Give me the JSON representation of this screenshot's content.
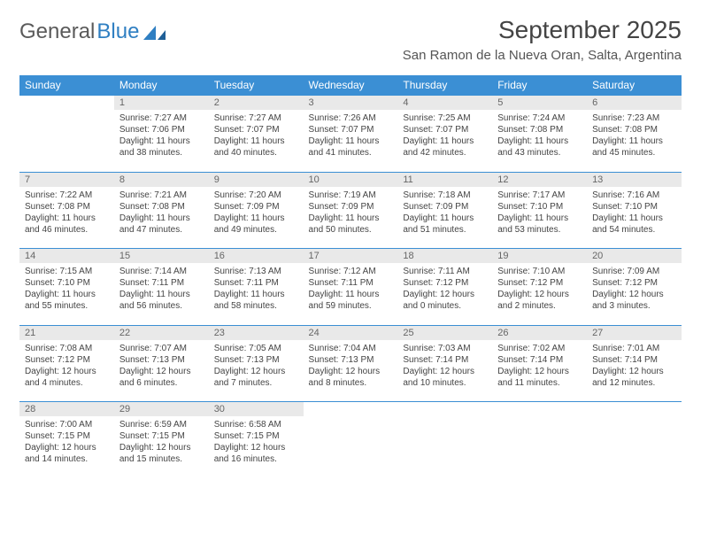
{
  "logo": {
    "text1": "General",
    "text2": "Blue"
  },
  "title": "September 2025",
  "location": "San Ramon de la Nueva Oran, Salta, Argentina",
  "colors": {
    "header_bg": "#3b8fd4",
    "header_text": "#ffffff",
    "daynum_bg": "#e9e9e9",
    "daynum_text": "#666666",
    "body_text": "#444444",
    "rule": "#3b8fd4",
    "logo_gray": "#5a5a5a",
    "logo_blue": "#2f7fc2"
  },
  "weekdays": [
    "Sunday",
    "Monday",
    "Tuesday",
    "Wednesday",
    "Thursday",
    "Friday",
    "Saturday"
  ],
  "weeks": [
    [
      null,
      {
        "n": "1",
        "sr": "Sunrise: 7:27 AM",
        "ss": "Sunset: 7:06 PM",
        "dl": "Daylight: 11 hours and 38 minutes."
      },
      {
        "n": "2",
        "sr": "Sunrise: 7:27 AM",
        "ss": "Sunset: 7:07 PM",
        "dl": "Daylight: 11 hours and 40 minutes."
      },
      {
        "n": "3",
        "sr": "Sunrise: 7:26 AM",
        "ss": "Sunset: 7:07 PM",
        "dl": "Daylight: 11 hours and 41 minutes."
      },
      {
        "n": "4",
        "sr": "Sunrise: 7:25 AM",
        "ss": "Sunset: 7:07 PM",
        "dl": "Daylight: 11 hours and 42 minutes."
      },
      {
        "n": "5",
        "sr": "Sunrise: 7:24 AM",
        "ss": "Sunset: 7:08 PM",
        "dl": "Daylight: 11 hours and 43 minutes."
      },
      {
        "n": "6",
        "sr": "Sunrise: 7:23 AM",
        "ss": "Sunset: 7:08 PM",
        "dl": "Daylight: 11 hours and 45 minutes."
      }
    ],
    [
      {
        "n": "7",
        "sr": "Sunrise: 7:22 AM",
        "ss": "Sunset: 7:08 PM",
        "dl": "Daylight: 11 hours and 46 minutes."
      },
      {
        "n": "8",
        "sr": "Sunrise: 7:21 AM",
        "ss": "Sunset: 7:08 PM",
        "dl": "Daylight: 11 hours and 47 minutes."
      },
      {
        "n": "9",
        "sr": "Sunrise: 7:20 AM",
        "ss": "Sunset: 7:09 PM",
        "dl": "Daylight: 11 hours and 49 minutes."
      },
      {
        "n": "10",
        "sr": "Sunrise: 7:19 AM",
        "ss": "Sunset: 7:09 PM",
        "dl": "Daylight: 11 hours and 50 minutes."
      },
      {
        "n": "11",
        "sr": "Sunrise: 7:18 AM",
        "ss": "Sunset: 7:09 PM",
        "dl": "Daylight: 11 hours and 51 minutes."
      },
      {
        "n": "12",
        "sr": "Sunrise: 7:17 AM",
        "ss": "Sunset: 7:10 PM",
        "dl": "Daylight: 11 hours and 53 minutes."
      },
      {
        "n": "13",
        "sr": "Sunrise: 7:16 AM",
        "ss": "Sunset: 7:10 PM",
        "dl": "Daylight: 11 hours and 54 minutes."
      }
    ],
    [
      {
        "n": "14",
        "sr": "Sunrise: 7:15 AM",
        "ss": "Sunset: 7:10 PM",
        "dl": "Daylight: 11 hours and 55 minutes."
      },
      {
        "n": "15",
        "sr": "Sunrise: 7:14 AM",
        "ss": "Sunset: 7:11 PM",
        "dl": "Daylight: 11 hours and 56 minutes."
      },
      {
        "n": "16",
        "sr": "Sunrise: 7:13 AM",
        "ss": "Sunset: 7:11 PM",
        "dl": "Daylight: 11 hours and 58 minutes."
      },
      {
        "n": "17",
        "sr": "Sunrise: 7:12 AM",
        "ss": "Sunset: 7:11 PM",
        "dl": "Daylight: 11 hours and 59 minutes."
      },
      {
        "n": "18",
        "sr": "Sunrise: 7:11 AM",
        "ss": "Sunset: 7:12 PM",
        "dl": "Daylight: 12 hours and 0 minutes."
      },
      {
        "n": "19",
        "sr": "Sunrise: 7:10 AM",
        "ss": "Sunset: 7:12 PM",
        "dl": "Daylight: 12 hours and 2 minutes."
      },
      {
        "n": "20",
        "sr": "Sunrise: 7:09 AM",
        "ss": "Sunset: 7:12 PM",
        "dl": "Daylight: 12 hours and 3 minutes."
      }
    ],
    [
      {
        "n": "21",
        "sr": "Sunrise: 7:08 AM",
        "ss": "Sunset: 7:12 PM",
        "dl": "Daylight: 12 hours and 4 minutes."
      },
      {
        "n": "22",
        "sr": "Sunrise: 7:07 AM",
        "ss": "Sunset: 7:13 PM",
        "dl": "Daylight: 12 hours and 6 minutes."
      },
      {
        "n": "23",
        "sr": "Sunrise: 7:05 AM",
        "ss": "Sunset: 7:13 PM",
        "dl": "Daylight: 12 hours and 7 minutes."
      },
      {
        "n": "24",
        "sr": "Sunrise: 7:04 AM",
        "ss": "Sunset: 7:13 PM",
        "dl": "Daylight: 12 hours and 8 minutes."
      },
      {
        "n": "25",
        "sr": "Sunrise: 7:03 AM",
        "ss": "Sunset: 7:14 PM",
        "dl": "Daylight: 12 hours and 10 minutes."
      },
      {
        "n": "26",
        "sr": "Sunrise: 7:02 AM",
        "ss": "Sunset: 7:14 PM",
        "dl": "Daylight: 12 hours and 11 minutes."
      },
      {
        "n": "27",
        "sr": "Sunrise: 7:01 AM",
        "ss": "Sunset: 7:14 PM",
        "dl": "Daylight: 12 hours and 12 minutes."
      }
    ],
    [
      {
        "n": "28",
        "sr": "Sunrise: 7:00 AM",
        "ss": "Sunset: 7:15 PM",
        "dl": "Daylight: 12 hours and 14 minutes."
      },
      {
        "n": "29",
        "sr": "Sunrise: 6:59 AM",
        "ss": "Sunset: 7:15 PM",
        "dl": "Daylight: 12 hours and 15 minutes."
      },
      {
        "n": "30",
        "sr": "Sunrise: 6:58 AM",
        "ss": "Sunset: 7:15 PM",
        "dl": "Daylight: 12 hours and 16 minutes."
      },
      null,
      null,
      null,
      null
    ]
  ]
}
